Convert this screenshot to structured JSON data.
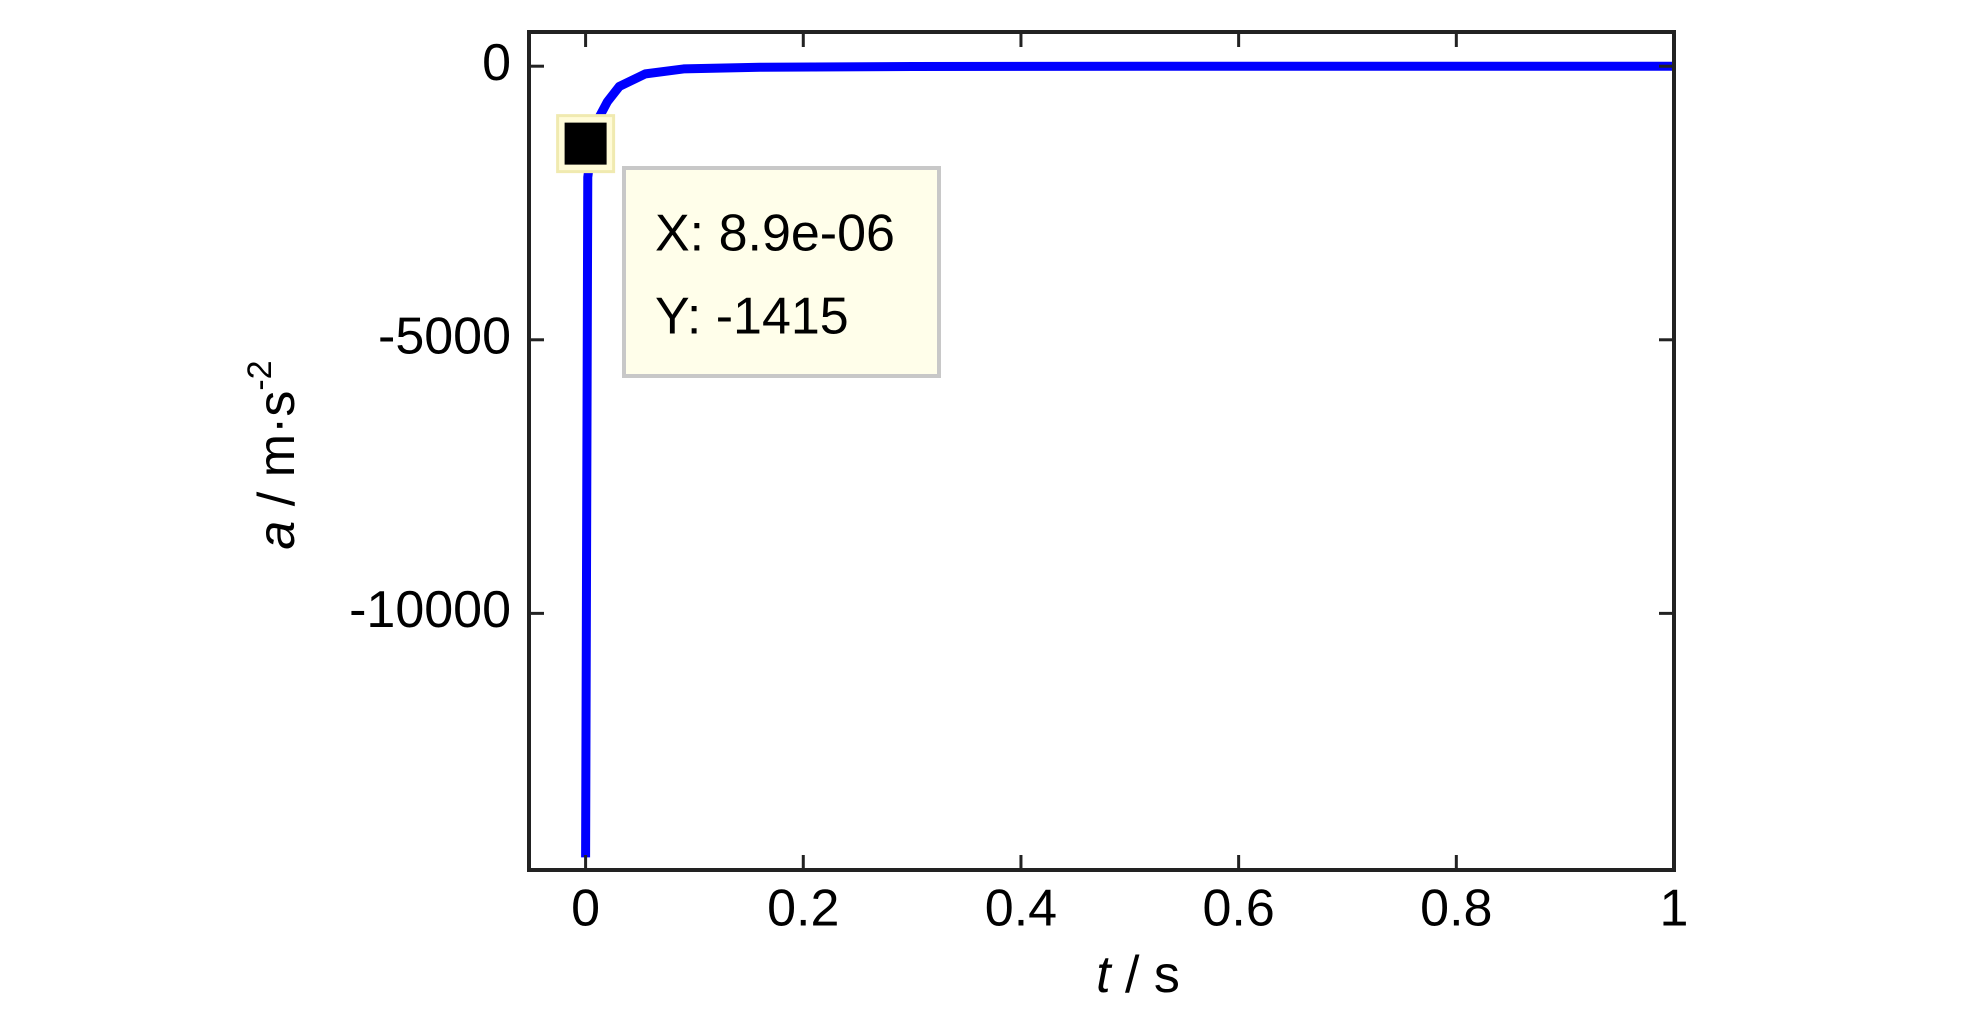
{
  "chart_data": {
    "type": "line",
    "xlabel": [
      "t",
      " / s"
    ],
    "ylabel": [
      "a",
      " / m·s",
      "-2"
    ],
    "x": [
      0,
      0.002,
      0.008,
      0.02,
      0.031,
      0.055,
      0.09,
      0.16,
      0.3,
      0.6,
      1.0
    ],
    "series": [
      {
        "color": "#0000ff",
        "values": [
          -14460,
          -2030,
          -1100,
          -650,
          -370,
          -140,
          -50,
          -20,
          -5,
          0,
          0
        ]
      }
    ],
    "xlim": [
      -0.052,
      1
    ],
    "ylim": [
      -14690,
      625
    ],
    "xticks": [
      0,
      0.2,
      0.4,
      0.6,
      0.8,
      1
    ],
    "yticks": [
      -10000,
      -5000,
      0
    ],
    "datatip": {
      "x": 8.9e-06,
      "y": -1415,
      "labels": [
        "X: 8.9e-06",
        "Y: -1415"
      ]
    }
  }
}
